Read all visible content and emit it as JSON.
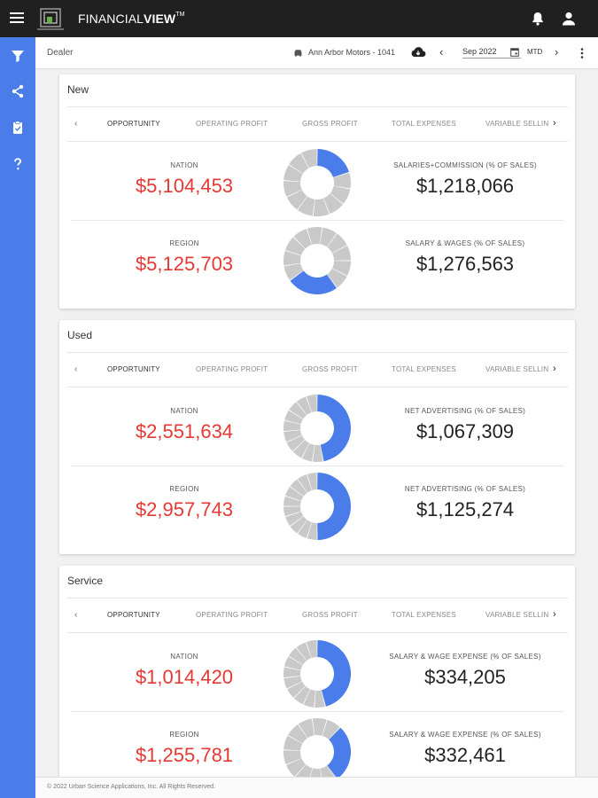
{
  "app": {
    "brand_main": "FINANCIAL",
    "brand_bold": "VIEW",
    "brand_tm": "TM"
  },
  "subheader": {
    "dealer_label": "Dealer",
    "dealer_name": "Ann Arbor Motors - 1041",
    "prev": "‹",
    "date": "Sep 2022",
    "period": "MTD",
    "next": "›"
  },
  "tab_labels": [
    "OPPORTUNITY",
    "OPERATING PROFIT",
    "GROSS PROFIT",
    "TOTAL EXPENSES",
    "VARIABLE SELLING"
  ],
  "tab_prev": "‹",
  "tab_next": "›",
  "colors": {
    "accent": "#4a7de9",
    "negative": "#e53935",
    "donut_gray": "#c9c9c9",
    "donut_blue": "#4a7de9"
  },
  "sections": [
    {
      "title": "New",
      "rows": [
        {
          "left_label": "NATION",
          "left_value": "$5,104,453",
          "right_label": "SALARIES+COMMISSION (% OF SALES)",
          "right_value": "$1,218,066"
        },
        {
          "left_label": "REGION",
          "left_value": "$5,125,703",
          "right_label": "SALARY & WAGES (% OF SALES)",
          "right_value": "$1,276,563"
        }
      ]
    },
    {
      "title": "Used",
      "rows": [
        {
          "left_label": "NATION",
          "left_value": "$2,551,634",
          "right_label": "NET ADVERTISING (% OF SALES)",
          "right_value": "$1,067,309"
        },
        {
          "left_label": "REGION",
          "left_value": "$2,957,743",
          "right_label": "NET ADVERTISING (% OF SALES)",
          "right_value": "$1,125,274"
        }
      ]
    },
    {
      "title": "Service",
      "rows": [
        {
          "left_label": "NATION",
          "left_value": "$1,014,420",
          "right_label": "SALARY & WAGE EXPENSE (% OF SALES)",
          "right_value": "$334,205"
        },
        {
          "left_label": "REGION",
          "left_value": "$1,255,781",
          "right_label": "SALARY & WAGE EXPENSE (% OF SALES)",
          "right_value": "$332,461"
        }
      ]
    }
  ],
  "footer": "© 2022 Urban Science Applications, Inc. All Rights Reserved."
}
